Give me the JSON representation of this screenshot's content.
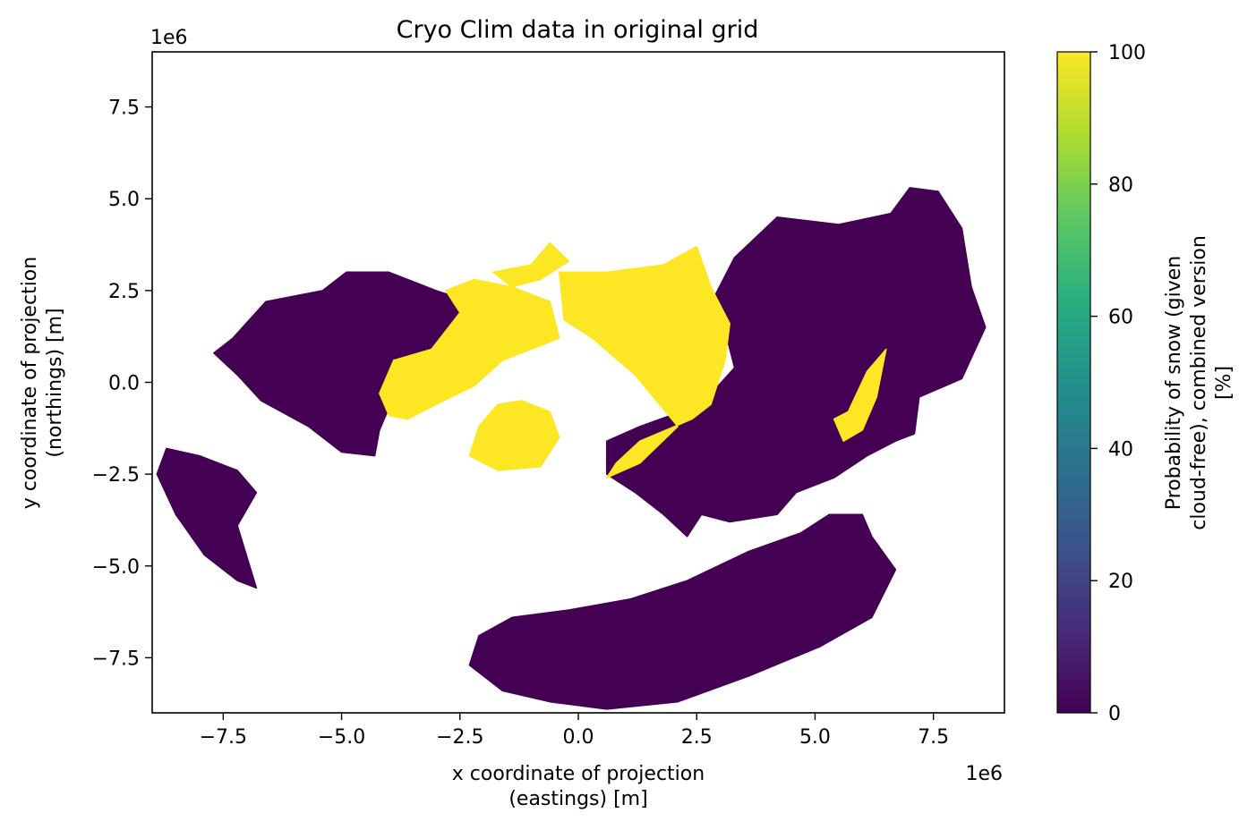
{
  "chart_data": {
    "type": "heatmap",
    "title": "Cryo Clim data in original grid",
    "xlabel_lines": [
      "x coordinate of projection",
      "(eastings) [m]"
    ],
    "ylabel_lines": [
      "y coordinate of projection",
      "(northings) [m]"
    ],
    "x_offset_label": "1e6",
    "y_offset_label": "1e6",
    "xlim": [
      -9.0,
      9.0
    ],
    "ylim": [
      -9.0,
      9.0
    ],
    "x_ticks": [
      -7.5,
      -5.0,
      -2.5,
      0.0,
      2.5,
      5.0,
      7.5
    ],
    "y_ticks": [
      -7.5,
      -5.0,
      -2.5,
      0.0,
      2.5,
      5.0,
      7.5
    ],
    "x_tick_labels": [
      "−7.5",
      "−5.0",
      "−2.5",
      "0.0",
      "2.5",
      "5.0",
      "7.5"
    ],
    "y_tick_labels": [
      "−7.5",
      "−5.0",
      "−2.5",
      "0.0",
      "2.5",
      "5.0",
      "7.5"
    ],
    "grid": false,
    "colormap": "viridis",
    "colorbar": {
      "label_lines": [
        "Probability of snow (given",
        "cloud-free), combined version",
        "[%]"
      ],
      "range": [
        0,
        100
      ],
      "ticks": [
        0,
        20,
        40,
        60,
        80,
        100
      ],
      "tick_labels": [
        "0",
        "20",
        "40",
        "60",
        "80",
        "100"
      ]
    },
    "regions": [
      {
        "name": "north-america",
        "value": 0,
        "points": [
          [
            -7.3,
            1.2
          ],
          [
            -6.6,
            2.2
          ],
          [
            -5.4,
            2.5
          ],
          [
            -4.9,
            3.0
          ],
          [
            -4.0,
            3.0
          ],
          [
            -3.0,
            2.5
          ],
          [
            -2.3,
            2.2
          ],
          [
            -2.8,
            0.6
          ],
          [
            -3.8,
            -0.1
          ],
          [
            -4.2,
            -1.3
          ],
          [
            -4.3,
            -2.0
          ],
          [
            -5.0,
            -1.9
          ],
          [
            -5.7,
            -1.2
          ],
          [
            -6.7,
            -0.5
          ],
          [
            -7.2,
            0.2
          ],
          [
            -7.7,
            0.8
          ]
        ]
      },
      {
        "name": "south-america",
        "value": 0,
        "points": [
          [
            -8.7,
            -1.8
          ],
          [
            -8.0,
            -2.0
          ],
          [
            -7.2,
            -2.4
          ],
          [
            -6.8,
            -3.0
          ],
          [
            -7.2,
            -3.9
          ],
          [
            -6.8,
            -5.6
          ],
          [
            -7.2,
            -5.4
          ],
          [
            -7.9,
            -4.7
          ],
          [
            -8.5,
            -3.6
          ],
          [
            -8.9,
            -2.5
          ]
        ]
      },
      {
        "name": "eurasia",
        "value": 0,
        "points": [
          [
            2.9,
            2.4
          ],
          [
            3.3,
            3.4
          ],
          [
            4.2,
            4.5
          ],
          [
            5.5,
            4.3
          ],
          [
            6.6,
            4.6
          ],
          [
            7.0,
            5.3
          ],
          [
            7.6,
            5.2
          ],
          [
            8.1,
            4.2
          ],
          [
            8.3,
            2.6
          ],
          [
            8.6,
            1.5
          ],
          [
            8.1,
            0.1
          ],
          [
            7.2,
            -0.4
          ],
          [
            7.1,
            -1.4
          ],
          [
            6.7,
            -1.6
          ],
          [
            6.1,
            -2.0
          ],
          [
            5.4,
            -2.6
          ],
          [
            4.6,
            -3.0
          ],
          [
            4.2,
            -3.6
          ],
          [
            3.2,
            -3.8
          ],
          [
            2.6,
            -3.6
          ],
          [
            2.3,
            -4.2
          ],
          [
            1.8,
            -3.6
          ],
          [
            1.2,
            -3.0
          ],
          [
            0.6,
            -2.5
          ],
          [
            0.6,
            -1.6
          ],
          [
            1.3,
            -1.2
          ],
          [
            2.6,
            -0.6
          ],
          [
            3.3,
            0.4
          ],
          [
            3.1,
            1.4
          ]
        ]
      },
      {
        "name": "africa",
        "value": 0,
        "points": [
          [
            -2.1,
            -6.9
          ],
          [
            -1.4,
            -6.4
          ],
          [
            -0.2,
            -6.2
          ],
          [
            1.1,
            -5.9
          ],
          [
            2.3,
            -5.4
          ],
          [
            3.6,
            -4.6
          ],
          [
            4.7,
            -4.1
          ],
          [
            5.3,
            -3.6
          ],
          [
            6.0,
            -3.6
          ],
          [
            6.2,
            -4.2
          ],
          [
            6.7,
            -5.1
          ],
          [
            6.2,
            -6.4
          ],
          [
            5.1,
            -7.2
          ],
          [
            3.6,
            -8.0
          ],
          [
            2.1,
            -8.7
          ],
          [
            0.6,
            -8.9
          ],
          [
            -0.6,
            -8.7
          ],
          [
            -1.6,
            -8.4
          ],
          [
            -2.3,
            -7.7
          ],
          [
            -2.2,
            -7.3
          ]
        ]
      },
      {
        "name": "greenland-ice",
        "value": 100,
        "points": [
          [
            -1.2,
            -0.5
          ],
          [
            -0.6,
            -0.8
          ],
          [
            -0.4,
            -1.5
          ],
          [
            -0.8,
            -2.3
          ],
          [
            -1.7,
            -2.4
          ],
          [
            -2.3,
            -2.0
          ],
          [
            -2.1,
            -1.2
          ],
          [
            -1.7,
            -0.6
          ]
        ]
      },
      {
        "name": "arctic-canada-snow",
        "value": 100,
        "points": [
          [
            -3.9,
            0.6
          ],
          [
            -3.1,
            0.9
          ],
          [
            -2.5,
            1.9
          ],
          [
            -2.8,
            2.5
          ],
          [
            -2.2,
            2.8
          ],
          [
            -1.4,
            2.6
          ],
          [
            -0.6,
            2.2
          ],
          [
            -0.4,
            1.2
          ],
          [
            -1.6,
            0.6
          ],
          [
            -2.2,
            -0.1
          ],
          [
            -3.0,
            -0.6
          ],
          [
            -3.6,
            -1.0
          ],
          [
            -4.0,
            -0.9
          ],
          [
            -4.2,
            -0.3
          ]
        ]
      },
      {
        "name": "siberia-snow",
        "value": 100,
        "points": [
          [
            -0.4,
            3.0
          ],
          [
            0.6,
            3.0
          ],
          [
            1.8,
            3.2
          ],
          [
            2.5,
            3.7
          ],
          [
            2.8,
            2.6
          ],
          [
            3.2,
            1.6
          ],
          [
            3.1,
            0.6
          ],
          [
            2.8,
            -0.6
          ],
          [
            2.4,
            -1.0
          ],
          [
            1.3,
            -1.6
          ],
          [
            0.8,
            -2.2
          ],
          [
            0.6,
            -2.6
          ],
          [
            1.3,
            -2.2
          ],
          [
            2.1,
            -1.2
          ],
          [
            1.2,
            0.2
          ],
          [
            0.3,
            1.2
          ],
          [
            -0.3,
            1.7
          ]
        ]
      },
      {
        "name": "asia-mountain-snow",
        "value": 100,
        "points": [
          [
            5.7,
            -0.8
          ],
          [
            6.1,
            0.3
          ],
          [
            6.5,
            0.9
          ],
          [
            6.3,
            -0.4
          ],
          [
            6.0,
            -1.3
          ],
          [
            5.6,
            -1.6
          ],
          [
            5.4,
            -1.0
          ]
        ]
      },
      {
        "name": "arctic-islands-snow",
        "value": 100,
        "points": [
          [
            -1.8,
            3.0
          ],
          [
            -1.0,
            3.2
          ],
          [
            -0.6,
            3.8
          ],
          [
            -0.2,
            3.3
          ],
          [
            -0.8,
            2.8
          ],
          [
            -1.4,
            2.6
          ]
        ]
      }
    ]
  }
}
